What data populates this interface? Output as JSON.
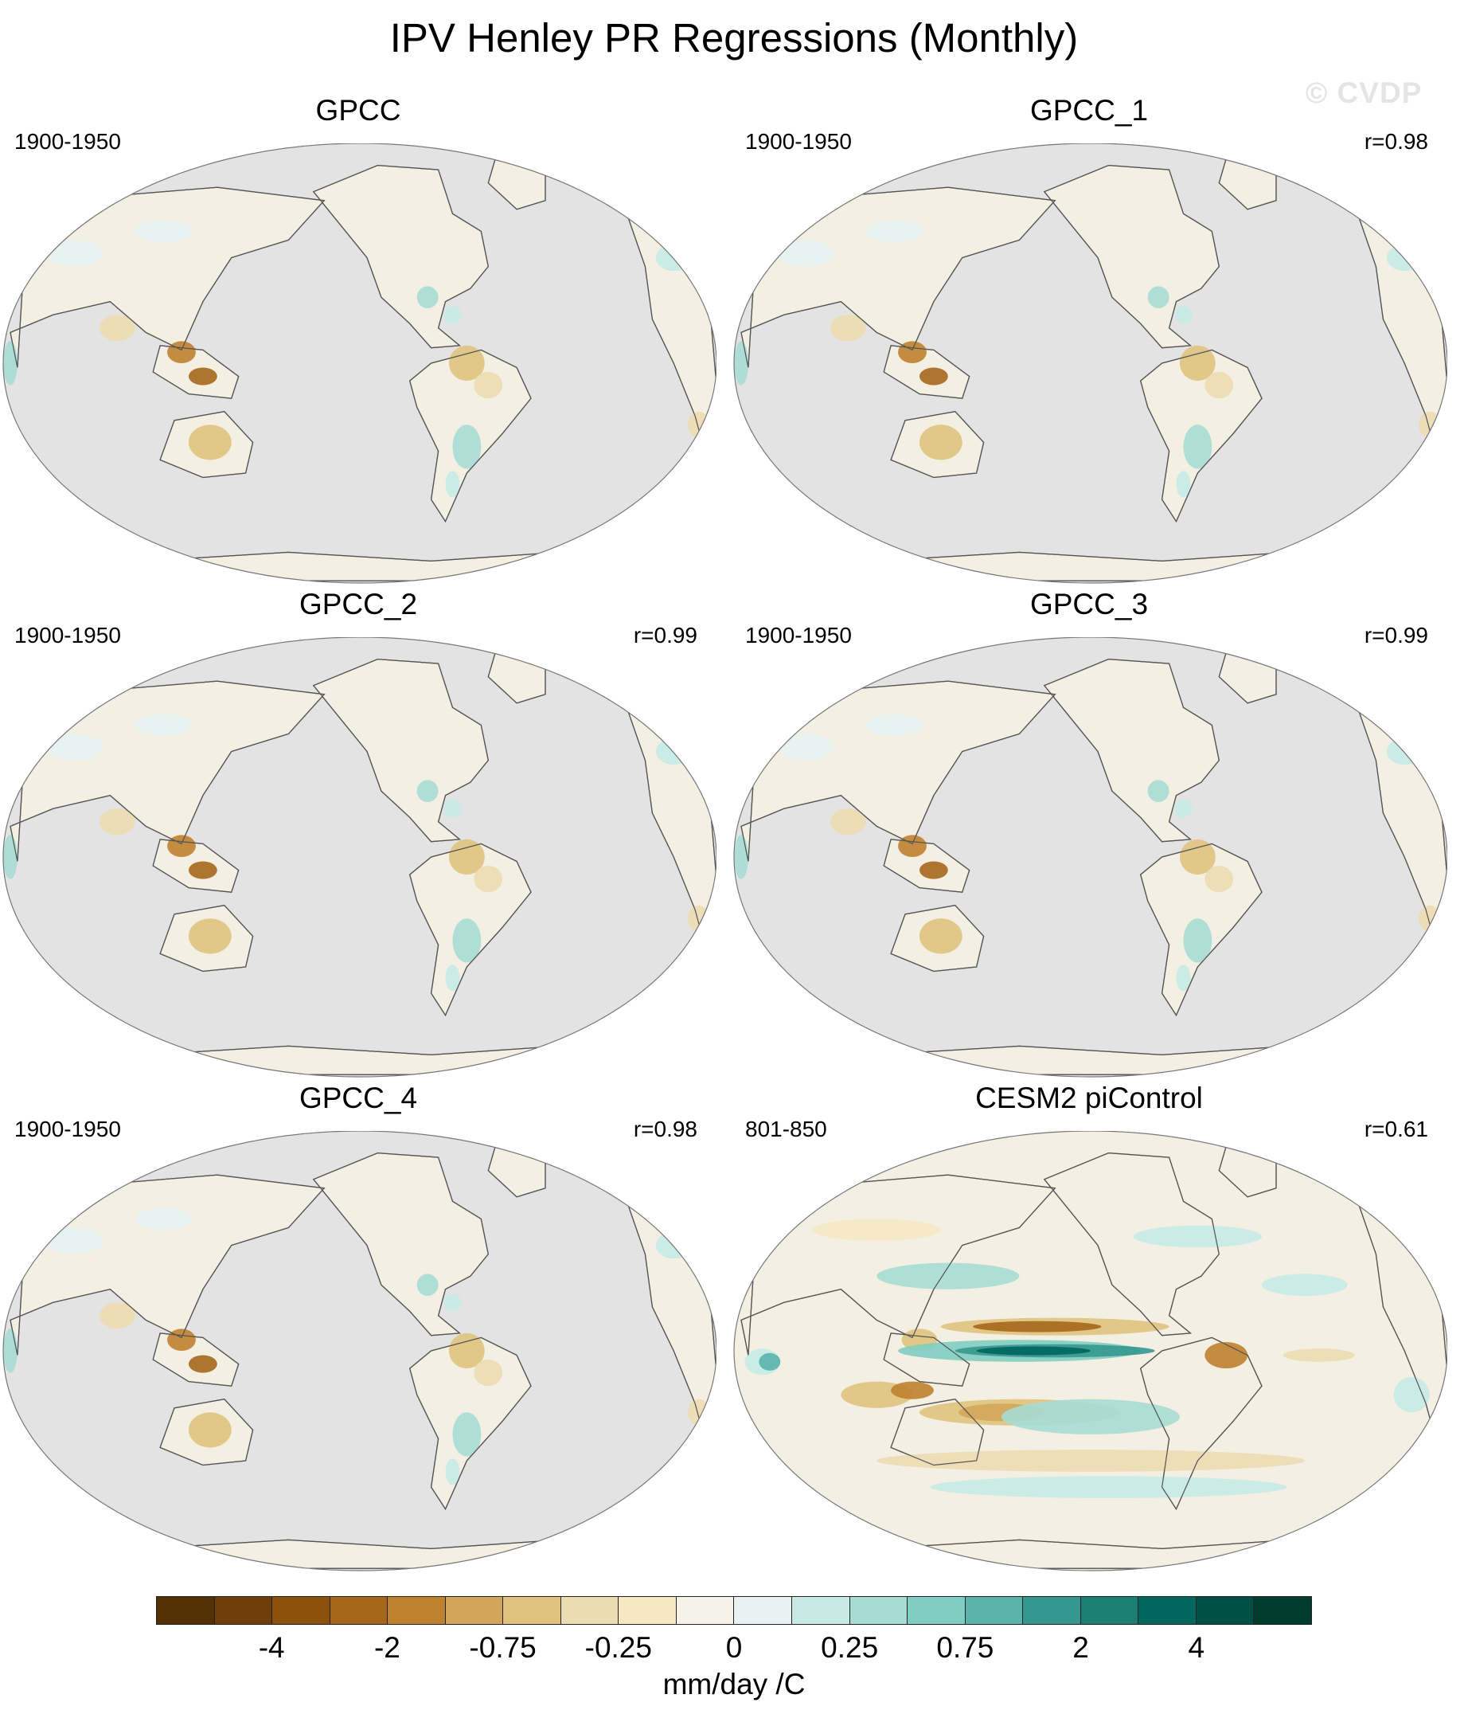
{
  "title": "IPV Henley PR Regressions (Monthly)",
  "watermark": "© CVDP",
  "panels": [
    {
      "title": "GPCC",
      "years": "1900-1950",
      "r": "",
      "pattern": "obs"
    },
    {
      "title": "GPCC_1",
      "years": "1900-1950",
      "r": "r=0.98",
      "pattern": "obs"
    },
    {
      "title": "GPCC_2",
      "years": "1900-1950",
      "r": "r=0.99",
      "pattern": "obs"
    },
    {
      "title": "GPCC_3",
      "years": "1900-1950",
      "r": "r=0.99",
      "pattern": "obs"
    },
    {
      "title": "GPCC_4",
      "years": "1900-1950",
      "r": "r=0.98",
      "pattern": "obs"
    },
    {
      "title": "CESM2 piControl",
      "years": "801-850",
      "r": "r=0.61",
      "pattern": "model"
    }
  ],
  "colorbar": {
    "unit": "mm/day /C",
    "tick_labels": [
      "-4",
      "-2",
      "-0.75",
      "-0.25",
      "0",
      "0.25",
      "0.75",
      "2",
      "4"
    ],
    "colors": [
      "#543005",
      "#6e3f0b",
      "#8c510a",
      "#a6671c",
      "#bf812d",
      "#d2a65a",
      "#dfc27d",
      "#ecdcb1",
      "#f6e8c3",
      "#f5f2ea",
      "#e7f2f1",
      "#c7eae5",
      "#a6dcd4",
      "#80cdc1",
      "#5ab4ac",
      "#35978f",
      "#1c7f76",
      "#01665e",
      "#004f45",
      "#003c30"
    ]
  },
  "legend_colors": {
    "ocean": "#e3e3e3",
    "land_neutral": "#f4efe3",
    "coast": "#555555"
  }
}
